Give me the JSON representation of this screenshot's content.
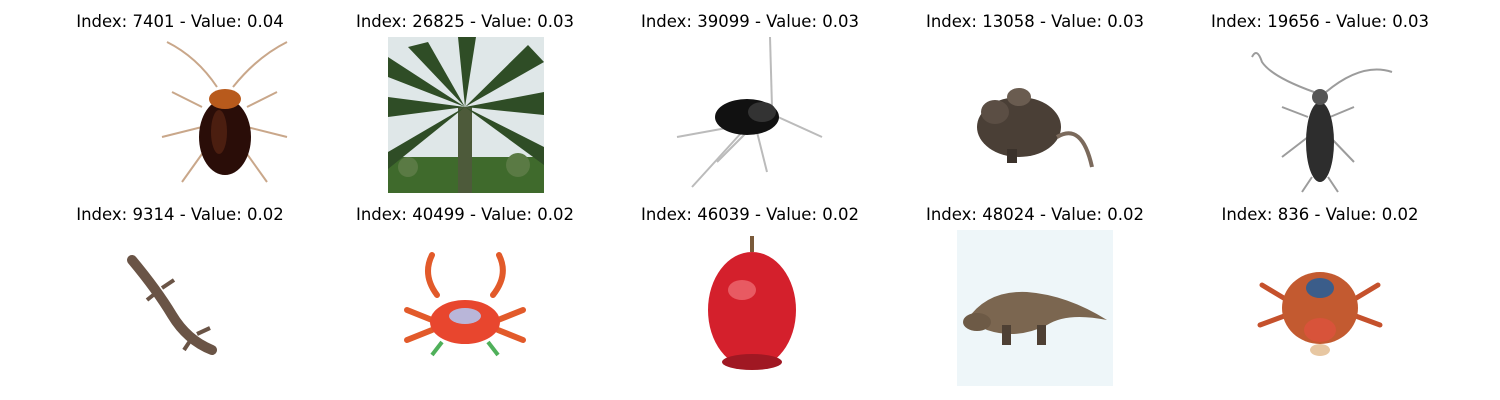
{
  "panels": [
    {
      "title": "Index: 7401 - Value: 0.04",
      "icon": "cockroach-icon"
    },
    {
      "title": "Index: 26825 - Value: 0.03",
      "icon": "palm-tree-icon"
    },
    {
      "title": "Index: 39099 - Value: 0.03",
      "icon": "cricket-icon"
    },
    {
      "title": "Index: 13058 - Value: 0.03",
      "icon": "rat-icon"
    },
    {
      "title": "Index: 19656 - Value: 0.03",
      "icon": "beetle-icon"
    },
    {
      "title": "Index: 9314 - Value: 0.02",
      "icon": "lizard-icon"
    },
    {
      "title": "Index: 40499 - Value: 0.02",
      "icon": "crab-icon"
    },
    {
      "title": "Index: 46039 - Value: 0.02",
      "icon": "apple-icon"
    },
    {
      "title": "Index: 48024 - Value: 0.02",
      "icon": "dinosaur-icon"
    },
    {
      "title": "Index: 836 - Value: 0.02",
      "icon": "crab-icon"
    }
  ]
}
